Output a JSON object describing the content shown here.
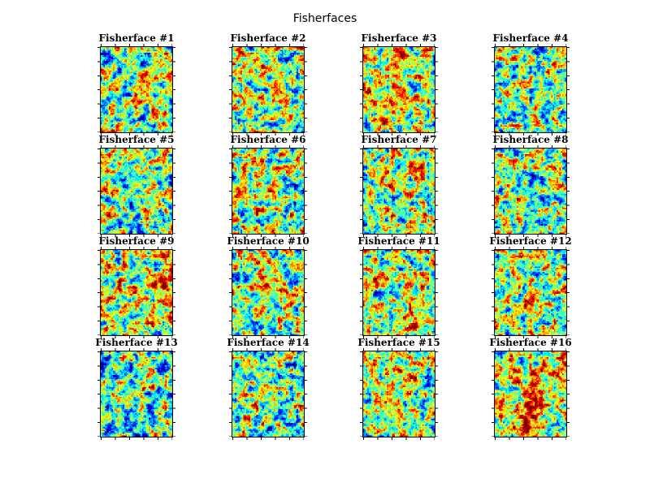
{
  "figure": {
    "title": "Fisherfaces",
    "background_color": "#ffffff"
  },
  "chart_data": {
    "type": "heatmap",
    "title": "Fisherfaces",
    "layout": {
      "rows": 4,
      "cols": 4,
      "legend": "none",
      "axis_tick_labels": "none",
      "grid": "off"
    },
    "colormap": "jet",
    "description": "4x4 grid of fisherface component images rendered with a jet colormap; mostly green/cyan mid-range values with scattered yellow/orange high values and blue low values",
    "subplots": [
      {
        "title": "Fisherface #1"
      },
      {
        "title": "Fisherface #2"
      },
      {
        "title": "Fisherface #3"
      },
      {
        "title": "Fisherface #4"
      },
      {
        "title": "Fisherface #5"
      },
      {
        "title": "Fisherface #6"
      },
      {
        "title": "Fisherface #7"
      },
      {
        "title": "Fisherface #8"
      },
      {
        "title": "Fisherface #9"
      },
      {
        "title": "Fisherface #10"
      },
      {
        "title": "Fisherface #11"
      },
      {
        "title": "Fisherface #12"
      },
      {
        "title": "Fisherface #13"
      },
      {
        "title": "Fisherface #14"
      },
      {
        "title": "Fisherface #15"
      },
      {
        "title": "Fisherface #16"
      }
    ]
  }
}
